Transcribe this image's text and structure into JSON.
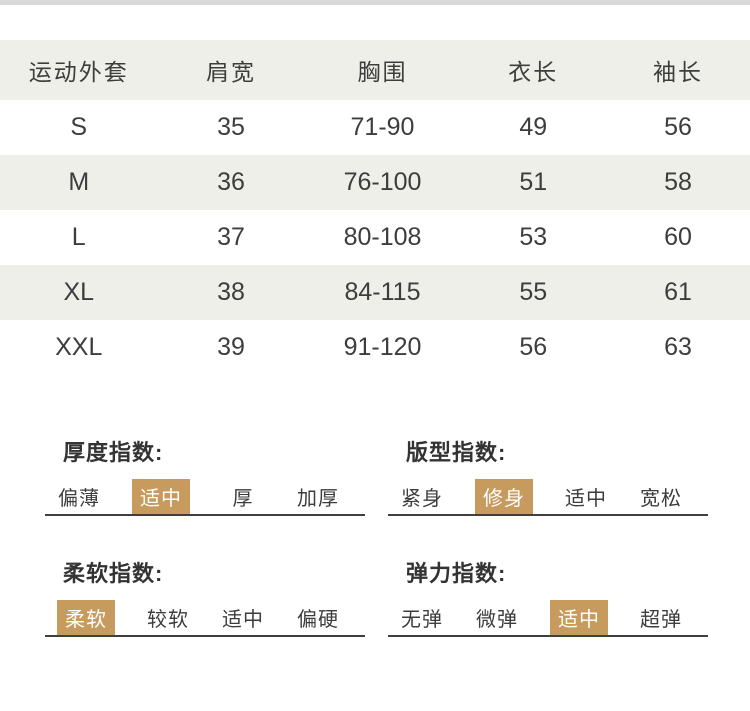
{
  "table": {
    "headers": [
      "运动外套",
      "肩宽",
      "胸围",
      "衣长",
      "袖长"
    ],
    "rows": [
      [
        "S",
        "35",
        "71-90",
        "49",
        "56"
      ],
      [
        "M",
        "36",
        "76-100",
        "51",
        "58"
      ],
      [
        "L",
        "37",
        "80-108",
        "53",
        "60"
      ],
      [
        "XL",
        "38",
        "84-115",
        "55",
        "61"
      ],
      [
        "XXL",
        "39",
        "91-120",
        "56",
        "63"
      ]
    ]
  },
  "indices": [
    {
      "label": "厚度指数:",
      "options": [
        "偏薄",
        "适中",
        "厚",
        "加厚"
      ],
      "selected": 1
    },
    {
      "label": "版型指数:",
      "options": [
        "紧身",
        "修身",
        "适中",
        "宽松"
      ],
      "selected": 1
    },
    {
      "label": "柔软指数:",
      "options": [
        "柔软",
        "较软",
        "适中",
        "偏硬"
      ],
      "selected": 0
    },
    {
      "label": "弹力指数:",
      "options": [
        "无弹",
        "微弹",
        "适中",
        "超弹"
      ],
      "selected": 2
    }
  ],
  "colors": {
    "highlight": "#c79b5d",
    "stripe": "#efefe9",
    "text": "#3d3d3d",
    "top_strip": "#d9d9d9"
  }
}
